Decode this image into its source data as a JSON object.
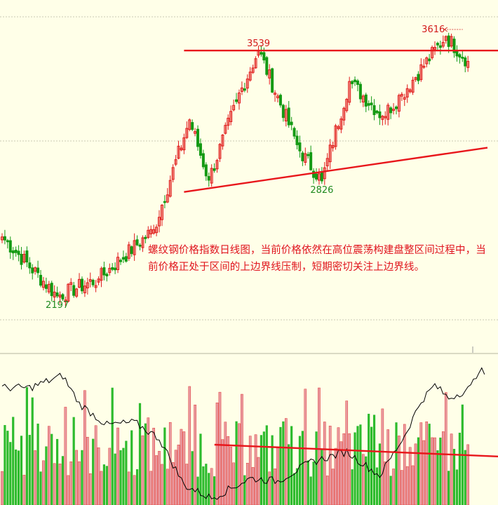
{
  "annotation": "螺纹钢价格指数日线图，当前价格依然在高位震荡构建盘整区间过程中，当前价格正处于区间的上边界线压制，短期密切关注上边界线。",
  "colors": {
    "up": "#e01a1a",
    "down": "#149a14",
    "trendline": "#e8161b",
    "grid": "#c8c8b4",
    "background": "#ffffe8",
    "indicator_line": "#000000",
    "label_red": "#d21919",
    "label_green": "#1f8a1f"
  },
  "chart_data": [
    {
      "type": "candlestick",
      "title": "",
      "price_labels": [
        {
          "text": "3539",
          "price": 3539,
          "index": 93,
          "color": "red"
        },
        {
          "text": "3616",
          "price": 3616,
          "index": 161,
          "color": "red",
          "arrow": true
        },
        {
          "text": "2826",
          "price": 2826,
          "index": 116,
          "color": "green"
        },
        {
          "text": "2197",
          "price": 2197,
          "index": 20,
          "color": "green"
        }
      ],
      "key_points": [
        {
          "index": 0,
          "close": 2520
        },
        {
          "index": 20,
          "close": 2197
        },
        {
          "index": 35,
          "close": 2290
        },
        {
          "index": 55,
          "close": 2560
        },
        {
          "index": 68,
          "close": 3160
        },
        {
          "index": 75,
          "close": 2830
        },
        {
          "index": 85,
          "close": 3260
        },
        {
          "index": 93,
          "close": 3539
        },
        {
          "index": 108,
          "close": 2990
        },
        {
          "index": 116,
          "close": 2826
        },
        {
          "index": 126,
          "close": 3370
        },
        {
          "index": 138,
          "close": 3180
        },
        {
          "index": 145,
          "close": 3300
        },
        {
          "index": 161,
          "close": 3616
        },
        {
          "index": 169,
          "close": 3480
        }
      ],
      "trendlines": [
        {
          "name": "upper",
          "from": {
            "index": 66,
            "price": 3539
          },
          "to": {
            "index": 177,
            "price": 3539
          }
        },
        {
          "name": "lower",
          "from": {
            "index": 66,
            "price": 2766
          },
          "to": {
            "index": 172,
            "price": 3008
          }
        }
      ]
    },
    {
      "type": "bar",
      "title": "",
      "series": [
        {
          "kind": "volume",
          "up_down_colored": true
        },
        {
          "kind": "line",
          "color": "black"
        }
      ],
      "line_key_points": [
        {
          "index": 0,
          "value": 0.78
        },
        {
          "index": 10,
          "value": 0.78
        },
        {
          "index": 22,
          "value": 0.87
        },
        {
          "index": 28,
          "value": 0.66
        },
        {
          "index": 38,
          "value": 0.5
        },
        {
          "index": 48,
          "value": 0.52
        },
        {
          "index": 57,
          "value": 0.4
        },
        {
          "index": 66,
          "value": 0.05
        },
        {
          "index": 76,
          "value": -0.05
        },
        {
          "index": 90,
          "value": 0.1
        },
        {
          "index": 100,
          "value": 0.08
        },
        {
          "index": 112,
          "value": 0.22
        },
        {
          "index": 125,
          "value": 0.3
        },
        {
          "index": 137,
          "value": 0.12
        },
        {
          "index": 146,
          "value": 0.42
        },
        {
          "index": 152,
          "value": 0.68
        },
        {
          "index": 157,
          "value": 0.8
        },
        {
          "index": 162,
          "value": 0.7
        },
        {
          "index": 170,
          "value": 0.78
        },
        {
          "index": 173,
          "value": 0.92
        },
        {
          "index": 175,
          "value": 0.88
        }
      ],
      "trendlines": [
        {
          "name": "volume-resistance",
          "from": {
            "index": 75
          },
          "to": {
            "index": 180
          }
        }
      ]
    }
  ]
}
